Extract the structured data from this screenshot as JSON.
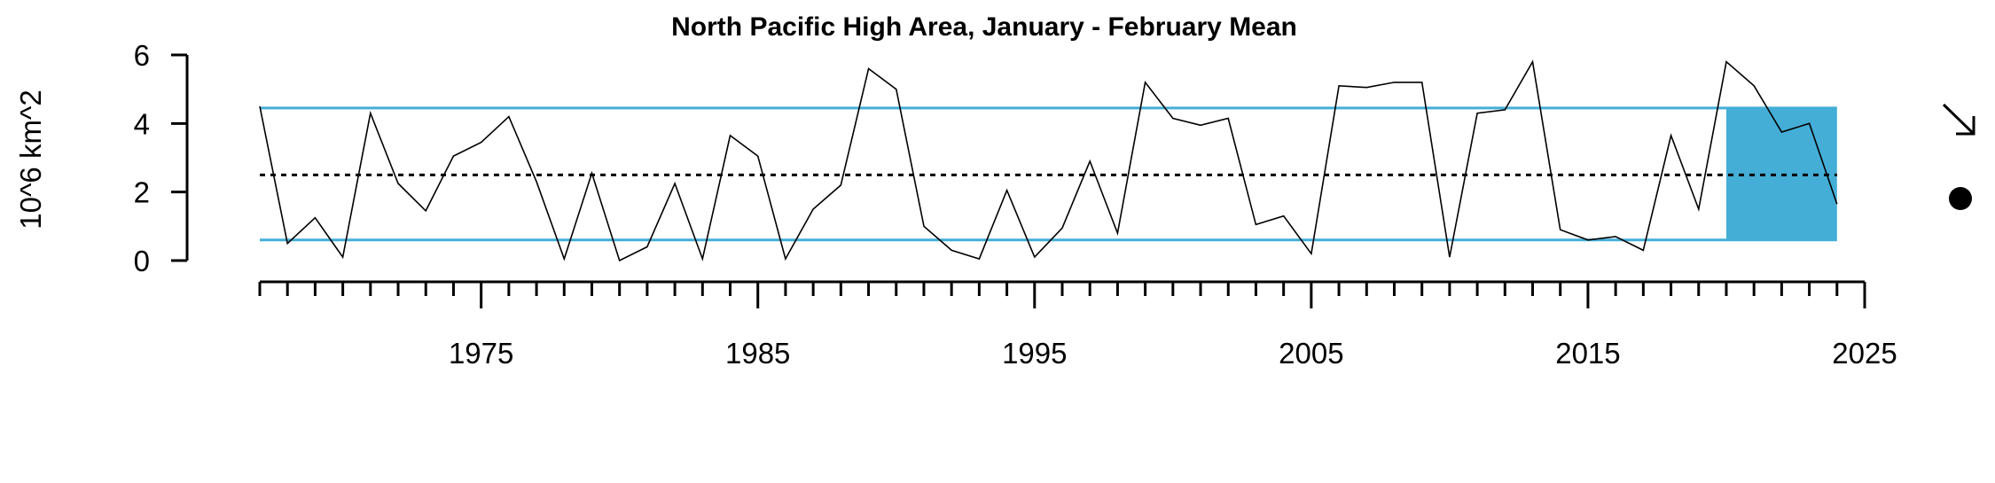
{
  "chart_data": {
    "type": "line",
    "title": "North Pacific High Area, January - February Mean",
    "ylabel": "10^6 km^2",
    "xlabel": "",
    "xlim": [
      1967,
      2025
    ],
    "ylim": [
      0,
      6
    ],
    "x_ticks": [
      1975,
      1985,
      1995,
      2005,
      2015,
      2025
    ],
    "y_ticks": [
      0,
      2,
      4,
      6
    ],
    "series": [
      {
        "x": [
          1967,
          1968,
          1969,
          1970,
          1971,
          1972,
          1973,
          1974,
          1975,
          1976,
          1977,
          1978,
          1979,
          1980,
          1981,
          1982,
          1983,
          1984,
          1985,
          1986,
          1987,
          1988,
          1989,
          1990,
          1991,
          1992,
          1993,
          1994,
          1995,
          1996,
          1997,
          1998,
          1999,
          2000,
          2001,
          2002,
          2003,
          2004,
          2005,
          2006,
          2007,
          2008,
          2009,
          2010,
          2011,
          2012,
          2013,
          2014,
          2015,
          2016,
          2017,
          2018,
          2019,
          2020,
          2021,
          2022,
          2023,
          2024
        ],
        "values": [
          4.5,
          0.5,
          1.25,
          0.1,
          4.3,
          2.25,
          1.45,
          3.05,
          3.45,
          4.2,
          2.3,
          0.05,
          2.55,
          0.0,
          0.4,
          2.25,
          0.05,
          3.65,
          3.05,
          0.05,
          1.5,
          2.2,
          5.6,
          5.0,
          1.0,
          0.3,
          0.05,
          2.05,
          0.1,
          0.95,
          2.9,
          0.8,
          5.2,
          4.15,
          3.95,
          4.15,
          1.05,
          1.3,
          0.2,
          5.1,
          5.05,
          5.2,
          5.2,
          0.1,
          4.3,
          4.4,
          5.8,
          0.9,
          0.6,
          0.7,
          0.3,
          3.65,
          1.5,
          5.8,
          5.1,
          3.75,
          4.0,
          1.65
        ]
      }
    ],
    "mean_line": 2.5,
    "sd_upper": 4.45,
    "sd_lower": 0.6,
    "highlight_range": [
      2020,
      2024
    ],
    "colors": {
      "line": "#000000",
      "sd": "#44AED6",
      "highlight": "#44AED6",
      "mean": "#000000"
    },
    "trend_indicator_icon": "arrow-down-right-icon",
    "mean_indicator_icon": "filled-circle-icon"
  }
}
